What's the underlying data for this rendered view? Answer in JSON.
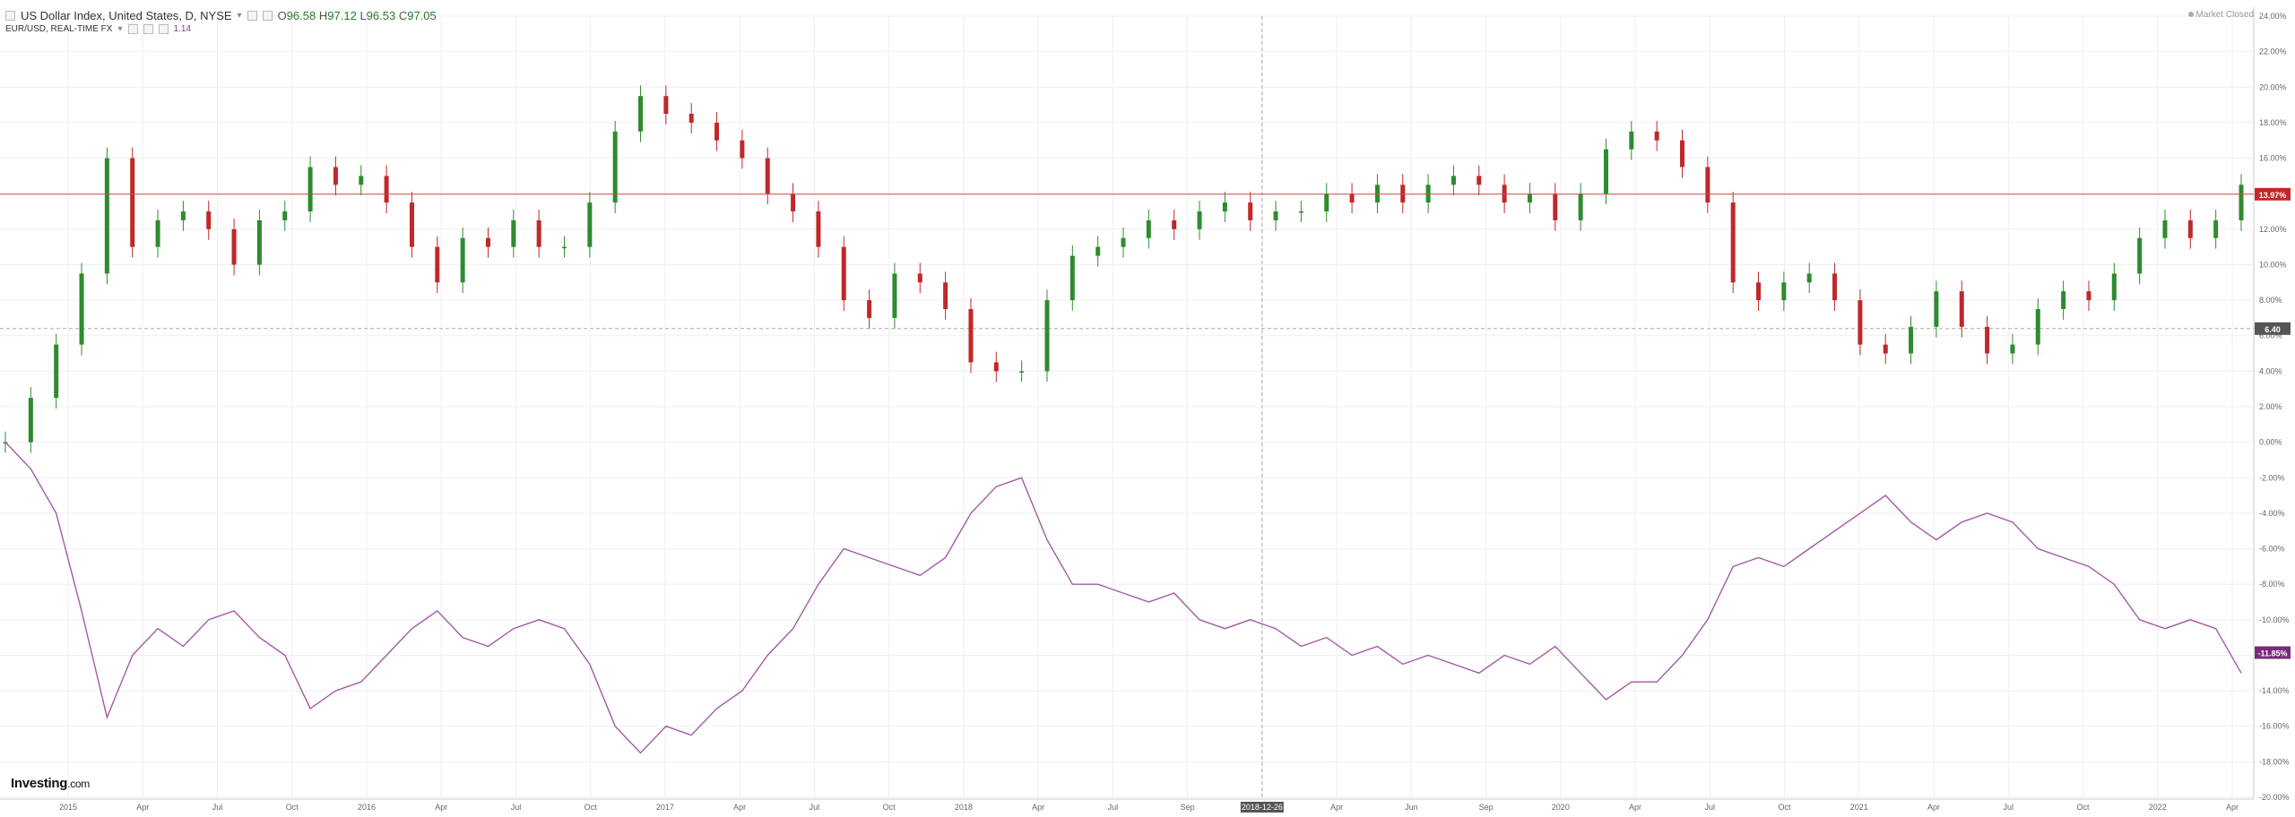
{
  "header": {
    "symbol": "US Dollar Index, United States, D, NYSE",
    "open_label": "O",
    "open": "96.58",
    "high_label": "H",
    "high": "97.12",
    "low_label": "L",
    "low": "96.53",
    "close_label": "C",
    "close": "97.05",
    "compare_symbol": "EUR/USD, REAL-TIME FX",
    "compare_value": "1.14"
  },
  "market_status": "Market Closed",
  "branding": {
    "name": "Investing",
    "domain": ".com"
  },
  "crosshair": {
    "date_label": "2018-12-26",
    "price_label": "6.40"
  },
  "colors": {
    "up": "#2e8b2e",
    "down": "#c0282a",
    "compare": "#a45aa4",
    "last_line": "#d34a4a",
    "grid": "#efefef",
    "axis_text": "#666"
  },
  "chart_data": {
    "type": "line",
    "x_axis": {
      "ticks": [
        "2015",
        "Apr",
        "Jul",
        "Oct",
        "2016",
        "Apr",
        "Jul",
        "Oct",
        "2017",
        "Apr",
        "Jul",
        "Oct",
        "2018",
        "Apr",
        "Jul",
        "Sep",
        "2018-12-26",
        "Apr",
        "Jun",
        "Sep",
        "2020",
        "Apr",
        "Jul",
        "Oct",
        "2021",
        "Apr",
        "Jul",
        "Oct",
        "2022",
        "Apr"
      ]
    },
    "y_axis": {
      "unit": "%",
      "ticks": [
        "24.00%",
        "22.00%",
        "20.00%",
        "18.00%",
        "16.00%",
        "14.00%",
        "12.00%",
        "10.00%",
        "8.00%",
        "6.00%",
        "4.00%",
        "2.00%",
        "0.00%",
        "-2.00%",
        "-4.00%",
        "-6.00%",
        "-8.00%",
        "-10.00%",
        "-12.00%",
        "-14.00%",
        "-16.00%",
        "-18.00%",
        "-20.00%"
      ],
      "range": [
        -20,
        24
      ]
    },
    "series": [
      {
        "name": "US Dollar Index, United States, D, NYSE",
        "style": "candlestick",
        "last_label": "13.97%",
        "last_value": 13.97,
        "x": [
          "2014-11",
          "2014-12",
          "2015-01",
          "2015-02",
          "2015-03",
          "2015-04",
          "2015-05",
          "2015-06",
          "2015-07",
          "2015-08",
          "2015-09",
          "2015-10",
          "2015-11",
          "2015-12",
          "2016-01",
          "2016-02",
          "2016-03",
          "2016-04",
          "2016-05",
          "2016-06",
          "2016-07",
          "2016-08",
          "2016-09",
          "2016-10",
          "2016-11",
          "2016-12",
          "2017-01",
          "2017-02",
          "2017-03",
          "2017-04",
          "2017-05",
          "2017-06",
          "2017-07",
          "2017-08",
          "2017-09",
          "2017-10",
          "2017-11",
          "2017-12",
          "2018-01",
          "2018-02",
          "2018-03",
          "2018-04",
          "2018-05",
          "2018-06",
          "2018-07",
          "2018-08",
          "2018-09",
          "2018-10",
          "2018-11",
          "2018-12",
          "2019-01",
          "2019-02",
          "2019-03",
          "2019-04",
          "2019-05",
          "2019-06",
          "2019-07",
          "2019-08",
          "2019-09",
          "2019-10",
          "2019-11",
          "2019-12",
          "2020-01",
          "2020-02",
          "2020-03",
          "2020-04",
          "2020-05",
          "2020-06",
          "2020-07",
          "2020-08",
          "2020-09",
          "2020-10",
          "2020-11",
          "2020-12",
          "2021-01",
          "2021-02",
          "2021-03",
          "2021-04",
          "2021-05",
          "2021-06",
          "2021-07",
          "2021-08",
          "2021-09",
          "2021-10",
          "2021-11",
          "2021-12",
          "2022-01",
          "2022-02",
          "2022-03"
        ],
        "values": [
          0.0,
          2.5,
          5.5,
          9.5,
          16.0,
          11.0,
          12.5,
          13.0,
          12.0,
          10.0,
          12.5,
          13.0,
          15.5,
          14.5,
          15.0,
          13.5,
          11.0,
          9.0,
          11.5,
          11.0,
          12.5,
          11.0,
          11.0,
          13.5,
          17.5,
          19.5,
          18.5,
          18.0,
          17.0,
          16.0,
          14.0,
          13.0,
          11.0,
          8.0,
          7.0,
          9.5,
          9.0,
          7.5,
          4.5,
          4.0,
          4.0,
          8.0,
          10.5,
          11.0,
          11.5,
          12.5,
          12.0,
          13.0,
          13.5,
          12.5,
          13.0,
          13.0,
          14.0,
          13.5,
          14.5,
          13.5,
          14.5,
          15.0,
          14.5,
          13.5,
          14.0,
          12.5,
          14.0,
          16.5,
          17.5,
          17.0,
          15.5,
          13.5,
          9.0,
          8.0,
          9.0,
          9.5,
          8.0,
          5.5,
          5.0,
          6.5,
          8.5,
          6.5,
          5.0,
          5.5,
          7.5,
          8.5,
          8.0,
          9.5,
          11.5,
          12.5,
          11.5,
          12.5,
          14.5
        ]
      },
      {
        "name": "EUR/USD, REAL-TIME FX",
        "style": "line",
        "last_label": "-11.85%",
        "last_value": -11.85,
        "x": [
          "2014-11",
          "2014-12",
          "2015-01",
          "2015-02",
          "2015-03",
          "2015-04",
          "2015-05",
          "2015-06",
          "2015-07",
          "2015-08",
          "2015-09",
          "2015-10",
          "2015-11",
          "2015-12",
          "2016-01",
          "2016-02",
          "2016-03",
          "2016-04",
          "2016-05",
          "2016-06",
          "2016-07",
          "2016-08",
          "2016-09",
          "2016-10",
          "2016-11",
          "2016-12",
          "2017-01",
          "2017-02",
          "2017-03",
          "2017-04",
          "2017-05",
          "2017-06",
          "2017-07",
          "2017-08",
          "2017-09",
          "2017-10",
          "2017-11",
          "2017-12",
          "2018-01",
          "2018-02",
          "2018-03",
          "2018-04",
          "2018-05",
          "2018-06",
          "2018-07",
          "2018-08",
          "2018-09",
          "2018-10",
          "2018-11",
          "2018-12",
          "2019-01",
          "2019-02",
          "2019-03",
          "2019-04",
          "2019-05",
          "2019-06",
          "2019-07",
          "2019-08",
          "2019-09",
          "2019-10",
          "2019-11",
          "2019-12",
          "2020-01",
          "2020-02",
          "2020-03",
          "2020-04",
          "2020-05",
          "2020-06",
          "2020-07",
          "2020-08",
          "2020-09",
          "2020-10",
          "2020-11",
          "2020-12",
          "2021-01",
          "2021-02",
          "2021-03",
          "2021-04",
          "2021-05",
          "2021-06",
          "2021-07",
          "2021-08",
          "2021-09",
          "2021-10",
          "2021-11",
          "2021-12",
          "2022-01",
          "2022-02",
          "2022-03"
        ],
        "values": [
          0.0,
          -1.5,
          -4.0,
          -9.5,
          -15.5,
          -12.0,
          -10.5,
          -11.5,
          -10.0,
          -9.5,
          -11.0,
          -12.0,
          -15.0,
          -14.0,
          -13.5,
          -12.0,
          -10.5,
          -9.5,
          -11.0,
          -11.5,
          -10.5,
          -10.0,
          -10.5,
          -12.5,
          -16.0,
          -17.5,
          -16.0,
          -16.5,
          -15.0,
          -14.0,
          -12.0,
          -10.5,
          -8.0,
          -6.0,
          -6.5,
          -7.0,
          -7.5,
          -6.5,
          -4.0,
          -2.5,
          -2.0,
          -5.5,
          -8.0,
          -8.0,
          -8.5,
          -9.0,
          -8.5,
          -10.0,
          -10.5,
          -10.0,
          -10.5,
          -11.5,
          -11.0,
          -12.0,
          -11.5,
          -12.5,
          -12.0,
          -12.5,
          -13.0,
          -12.0,
          -12.5,
          -11.5,
          -13.0,
          -14.5,
          -13.5,
          -13.5,
          -12.0,
          -10.0,
          -7.0,
          -6.5,
          -7.0,
          -6.0,
          -5.0,
          -4.0,
          -3.0,
          -4.5,
          -5.5,
          -4.5,
          -4.0,
          -4.5,
          -6.0,
          -6.5,
          -7.0,
          -8.0,
          -10.0,
          -10.5,
          -10.0,
          -10.5,
          -13.0
        ]
      }
    ]
  }
}
